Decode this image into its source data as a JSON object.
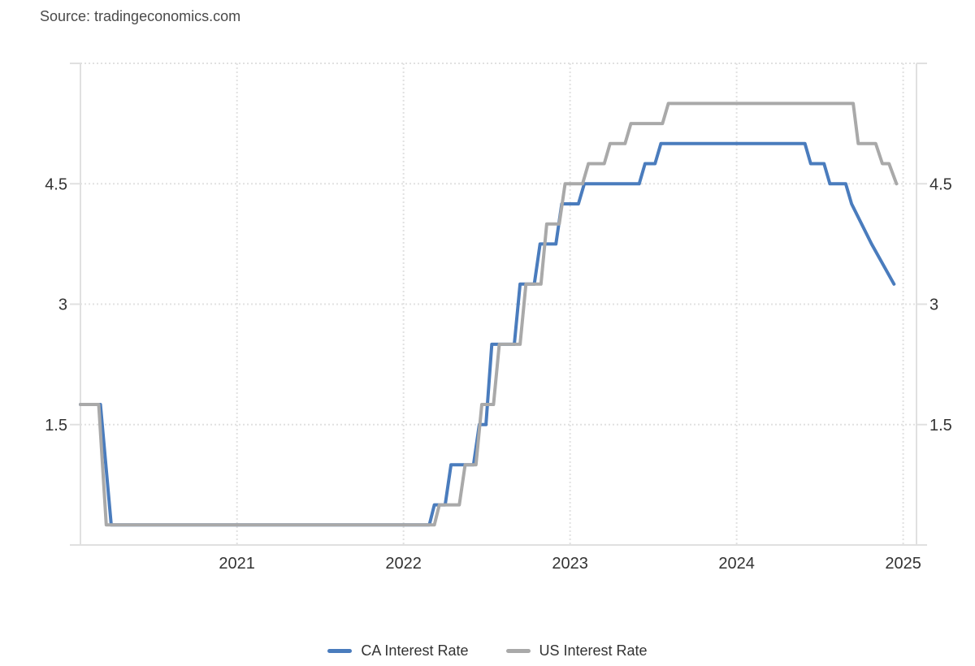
{
  "source_label": "Source: tradingeconomics.com",
  "legend": [
    {
      "label": "CA Interest Rate",
      "color": "#4a7cbd"
    },
    {
      "label": "US Interest Rate",
      "color": "#a9a9a9"
    }
  ],
  "chart_data": {
    "type": "line",
    "title": "",
    "xlabel": "",
    "ylabel": "",
    "grid": "dotted",
    "legend_position": "bottom-center",
    "x_axis": {
      "min": 2020.06,
      "max": 2025.08,
      "ticks": [
        2021,
        2022,
        2023,
        2024,
        2025
      ]
    },
    "y_axis": {
      "min": 0,
      "max": 6,
      "ticks_labeled": [
        1.5,
        3,
        4.5
      ],
      "gridlines": [
        1.5,
        3,
        4.5,
        6
      ],
      "label_sides": "both"
    },
    "series": [
      {
        "name": "CA Interest Rate",
        "color": "#4a7cbd",
        "points": [
          [
            2020.06,
            1.75
          ],
          [
            2020.18,
            1.75
          ],
          [
            2020.245,
            0.25
          ],
          [
            2022.155,
            0.25
          ],
          [
            2022.185,
            0.5
          ],
          [
            2022.25,
            0.5
          ],
          [
            2022.285,
            1.0
          ],
          [
            2022.42,
            1.0
          ],
          [
            2022.455,
            1.5
          ],
          [
            2022.495,
            1.5
          ],
          [
            2022.53,
            2.5
          ],
          [
            2022.665,
            2.5
          ],
          [
            2022.7,
            3.25
          ],
          [
            2022.785,
            3.25
          ],
          [
            2022.82,
            3.75
          ],
          [
            2022.915,
            3.75
          ],
          [
            2022.95,
            4.25
          ],
          [
            2023.05,
            4.25
          ],
          [
            2023.085,
            4.5
          ],
          [
            2023.415,
            4.5
          ],
          [
            2023.45,
            4.75
          ],
          [
            2023.51,
            4.75
          ],
          [
            2023.545,
            5.0
          ],
          [
            2024.41,
            5.0
          ],
          [
            2024.445,
            4.75
          ],
          [
            2024.525,
            4.75
          ],
          [
            2024.56,
            4.5
          ],
          [
            2024.655,
            4.5
          ],
          [
            2024.69,
            4.25
          ],
          [
            2024.81,
            3.75
          ],
          [
            2024.945,
            3.25
          ]
        ]
      },
      {
        "name": "US Interest Rate",
        "color": "#a9a9a9",
        "points": [
          [
            2020.06,
            1.75
          ],
          [
            2020.17,
            1.75
          ],
          [
            2020.215,
            0.25
          ],
          [
            2022.185,
            0.25
          ],
          [
            2022.215,
            0.5
          ],
          [
            2022.335,
            0.5
          ],
          [
            2022.37,
            1.0
          ],
          [
            2022.435,
            1.0
          ],
          [
            2022.47,
            1.75
          ],
          [
            2022.54,
            1.75
          ],
          [
            2022.575,
            2.5
          ],
          [
            2022.7,
            2.5
          ],
          [
            2022.735,
            3.25
          ],
          [
            2022.825,
            3.25
          ],
          [
            2022.86,
            4.0
          ],
          [
            2022.935,
            4.0
          ],
          [
            2022.97,
            4.5
          ],
          [
            2023.075,
            4.5
          ],
          [
            2023.11,
            4.75
          ],
          [
            2023.205,
            4.75
          ],
          [
            2023.24,
            5.0
          ],
          [
            2023.33,
            5.0
          ],
          [
            2023.365,
            5.25
          ],
          [
            2023.555,
            5.25
          ],
          [
            2023.59,
            5.5
          ],
          [
            2024.7,
            5.5
          ],
          [
            2024.73,
            5.0
          ],
          [
            2024.835,
            5.0
          ],
          [
            2024.875,
            4.75
          ],
          [
            2024.915,
            4.75
          ],
          [
            2024.96,
            4.5
          ]
        ]
      }
    ]
  }
}
